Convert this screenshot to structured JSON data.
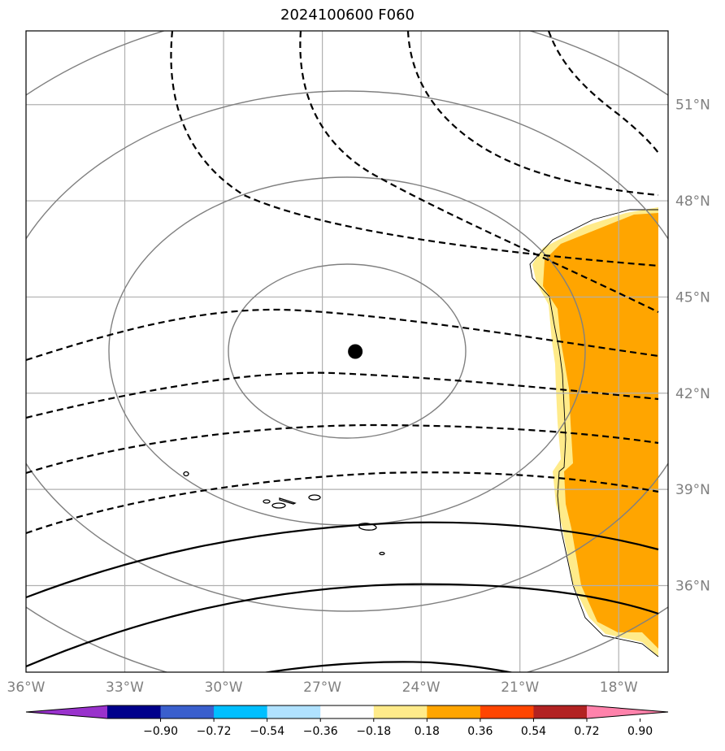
{
  "title": "2024100600 F060",
  "map": {
    "lon_range": [
      -36,
      -16.5
    ],
    "lat_range": [
      33.3,
      53.3
    ],
    "lon_ticks": [
      {
        "value": -36,
        "label": "36°W"
      },
      {
        "value": -33,
        "label": "33°W"
      },
      {
        "value": -30,
        "label": "30°W"
      },
      {
        "value": -27,
        "label": "27°W"
      },
      {
        "value": -24,
        "label": "24°W"
      },
      {
        "value": -21,
        "label": "21°W"
      },
      {
        "value": -18,
        "label": "18°W"
      }
    ],
    "lat_ticks": [
      {
        "value": 51,
        "label": "51°N"
      },
      {
        "value": 48,
        "label": "48°N"
      },
      {
        "value": 45,
        "label": "45°N"
      },
      {
        "value": 42,
        "label": "42°N"
      },
      {
        "value": 39,
        "label": "39°N"
      },
      {
        "value": 36,
        "label": "36°N"
      }
    ],
    "center_marker": {
      "lon": -26.0,
      "lat": 43.3
    },
    "colors": {
      "grid": "#b0b0b0",
      "gray_contour": "#808080",
      "black_contour": "#000000",
      "fill_light": "#ffeb8a",
      "fill_orange": "#ffa500"
    }
  },
  "colorbar": {
    "colors": [
      "#9932cc",
      "#00008b",
      "#3a5fcd",
      "#00bfff",
      "#b0e2ff",
      "#ffffff",
      "#ffeb8a",
      "#ffa500",
      "#ff4500",
      "#b22222",
      "#ff82ab"
    ],
    "tick_labels": [
      "−0.90",
      "−0.72",
      "−0.54",
      "−0.36",
      "−0.18",
      "0.18",
      "0.36",
      "0.54",
      "0.72",
      "0.90"
    ]
  }
}
